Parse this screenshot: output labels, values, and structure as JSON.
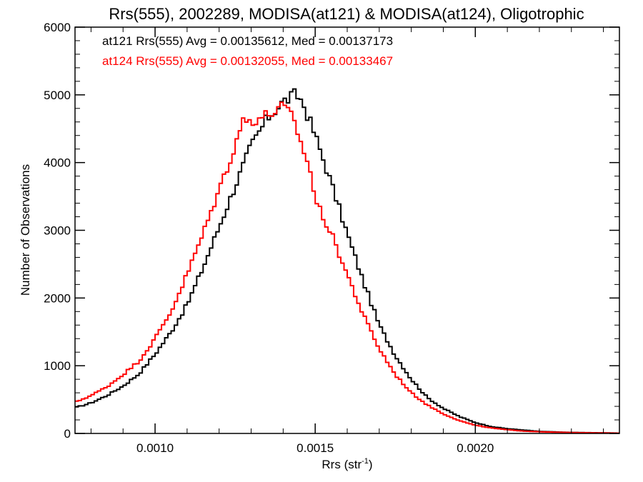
{
  "chart_data": {
    "type": "line",
    "style": "histogram-step",
    "title": "Rrs(555), 2002289, MODISA(at121) & MODISA(at124), Oligotrophic",
    "xlabel": {
      "main": "Rrs (str",
      "sup": "-1",
      "close": ")"
    },
    "ylabel": "Number of Observations",
    "xlim": [
      0.00075,
      0.00245
    ],
    "ylim": [
      0,
      6000
    ],
    "x_ticks": [
      0.001,
      0.0015,
      0.002
    ],
    "x_tick_labels": [
      "0.0010",
      "0.0015",
      "0.0020"
    ],
    "y_ticks": [
      0,
      1000,
      2000,
      3000,
      4000,
      5000,
      6000
    ],
    "y_tick_labels": [
      "0",
      "1000",
      "2000",
      "3000",
      "4000",
      "5000",
      "6000"
    ],
    "grid": false,
    "legend_placement": "top-left",
    "bin_width": 1e-05,
    "series": [
      {
        "legend": "at121 Rrs(555) Avg = 0.00135612, Med = 0.00137173",
        "color": "#000000",
        "points": [
          [
            0.00075,
            380
          ],
          [
            0.0008,
            450
          ],
          [
            0.00085,
            560
          ],
          [
            0.0009,
            700
          ],
          [
            0.00095,
            880
          ],
          [
            0.001,
            1170
          ],
          [
            0.00105,
            1500
          ],
          [
            0.0011,
            1900
          ],
          [
            0.00115,
            2450
          ],
          [
            0.0012,
            3050
          ],
          [
            0.00125,
            3650
          ],
          [
            0.0013,
            4250
          ],
          [
            0.00135,
            4650
          ],
          [
            0.0014,
            4900
          ],
          [
            0.00142,
            4950
          ],
          [
            0.00144,
            5010
          ],
          [
            0.00146,
            4900
          ],
          [
            0.00148,
            4650
          ],
          [
            0.0015,
            4400
          ],
          [
            0.00155,
            3700
          ],
          [
            0.0016,
            2950
          ],
          [
            0.00165,
            2250
          ],
          [
            0.0017,
            1600
          ],
          [
            0.00175,
            1150
          ],
          [
            0.0018,
            800
          ],
          [
            0.00185,
            530
          ],
          [
            0.0019,
            370
          ],
          [
            0.00195,
            250
          ],
          [
            0.002,
            160
          ],
          [
            0.00205,
            100
          ],
          [
            0.0021,
            70
          ],
          [
            0.00215,
            50
          ],
          [
            0.0022,
            30
          ],
          [
            0.0023,
            15
          ],
          [
            0.00245,
            5
          ]
        ]
      },
      {
        "legend": "at124 Rrs(555) Avg = 0.00132055, Med = 0.00133467",
        "color": "#ff0000",
        "points": [
          [
            0.00075,
            460
          ],
          [
            0.0008,
            560
          ],
          [
            0.00085,
            690
          ],
          [
            0.0009,
            870
          ],
          [
            0.00095,
            1070
          ],
          [
            0.001,
            1400
          ],
          [
            0.00105,
            1800
          ],
          [
            0.0011,
            2350
          ],
          [
            0.00115,
            2950
          ],
          [
            0.0012,
            3600
          ],
          [
            0.00125,
            4250
          ],
          [
            0.00127,
            4600
          ],
          [
            0.0013,
            4620
          ],
          [
            0.00135,
            4700
          ],
          [
            0.0014,
            4820
          ],
          [
            0.00142,
            4720
          ],
          [
            0.00144,
            4550
          ],
          [
            0.00146,
            4200
          ],
          [
            0.00148,
            4000
          ],
          [
            0.0015,
            3450
          ],
          [
            0.00155,
            2950
          ],
          [
            0.0016,
            2350
          ],
          [
            0.00165,
            1750
          ],
          [
            0.0017,
            1250
          ],
          [
            0.00175,
            870
          ],
          [
            0.0018,
            600
          ],
          [
            0.00185,
            420
          ],
          [
            0.0019,
            290
          ],
          [
            0.00195,
            190
          ],
          [
            0.002,
            120
          ],
          [
            0.00205,
            80
          ],
          [
            0.0021,
            55
          ],
          [
            0.00215,
            35
          ],
          [
            0.0022,
            25
          ],
          [
            0.0023,
            12
          ],
          [
            0.00245,
            5
          ]
        ]
      }
    ]
  }
}
